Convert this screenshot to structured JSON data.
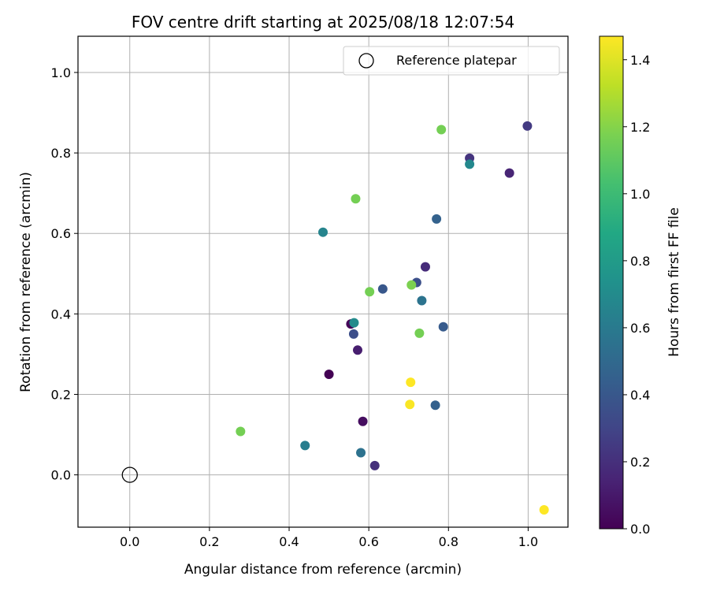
{
  "chart_data": {
    "type": "scatter",
    "title": "FOV centre drift starting at 2025/08/18 12:07:54",
    "xlabel": "Angular distance from reference (arcmin)",
    "ylabel": "Rotation from reference (arcmin)",
    "xlim": [
      -0.13,
      1.1
    ],
    "ylim": [
      -0.13,
      1.09
    ],
    "xticks": [
      "0.0",
      "0.2",
      "0.4",
      "0.6",
      "0.8",
      "1.0"
    ],
    "yticks": [
      "0.0",
      "0.2",
      "0.4",
      "0.6",
      "0.8",
      "1.0"
    ],
    "grid": true,
    "legend": {
      "placement": "top-right",
      "entries": [
        "Reference platepar"
      ]
    },
    "reference_point": {
      "x": 0.0,
      "y": 0.0
    },
    "colorbar": {
      "label": "Hours from first FF file",
      "colormap": "viridis",
      "range": [
        0.0,
        1.47
      ],
      "ticks": [
        "0.0",
        "0.2",
        "0.4",
        "0.6",
        "0.8",
        "1.0",
        "1.2",
        "1.4"
      ]
    },
    "points": [
      {
        "x": 0.5,
        "y": 0.25,
        "hours": 0.0
      },
      {
        "x": 0.555,
        "y": 0.375,
        "hours": 0.02
      },
      {
        "x": 0.585,
        "y": 0.133,
        "hours": 0.05
      },
      {
        "x": 0.572,
        "y": 0.31,
        "hours": 0.12
      },
      {
        "x": 0.953,
        "y": 0.75,
        "hours": 0.15
      },
      {
        "x": 0.742,
        "y": 0.517,
        "hours": 0.18
      },
      {
        "x": 0.615,
        "y": 0.023,
        "hours": 0.2
      },
      {
        "x": 0.853,
        "y": 0.787,
        "hours": 0.22
      },
      {
        "x": 0.998,
        "y": 0.867,
        "hours": 0.25
      },
      {
        "x": 0.562,
        "y": 0.35,
        "hours": 0.35
      },
      {
        "x": 0.72,
        "y": 0.478,
        "hours": 0.36
      },
      {
        "x": 0.635,
        "y": 0.462,
        "hours": 0.4
      },
      {
        "x": 0.787,
        "y": 0.368,
        "hours": 0.42
      },
      {
        "x": 0.767,
        "y": 0.173,
        "hours": 0.45
      },
      {
        "x": 0.77,
        "y": 0.636,
        "hours": 0.46
      },
      {
        "x": 0.58,
        "y": 0.055,
        "hours": 0.55
      },
      {
        "x": 0.733,
        "y": 0.433,
        "hours": 0.56
      },
      {
        "x": 0.44,
        "y": 0.073,
        "hours": 0.62
      },
      {
        "x": 0.853,
        "y": 0.772,
        "hours": 0.68
      },
      {
        "x": 0.485,
        "y": 0.603,
        "hours": 0.66
      },
      {
        "x": 0.563,
        "y": 0.378,
        "hours": 0.7
      },
      {
        "x": 0.278,
        "y": 0.108,
        "hours": 1.16
      },
      {
        "x": 0.567,
        "y": 0.686,
        "hours": 1.16
      },
      {
        "x": 0.782,
        "y": 0.858,
        "hours": 1.16
      },
      {
        "x": 0.602,
        "y": 0.455,
        "hours": 1.16
      },
      {
        "x": 0.727,
        "y": 0.352,
        "hours": 1.16
      },
      {
        "x": 0.707,
        "y": 0.472,
        "hours": 1.18
      },
      {
        "x": 0.703,
        "y": 0.175,
        "hours": 1.46
      },
      {
        "x": 0.705,
        "y": 0.23,
        "hours": 1.47
      },
      {
        "x": 1.04,
        "y": -0.087,
        "hours": 1.47
      }
    ]
  }
}
